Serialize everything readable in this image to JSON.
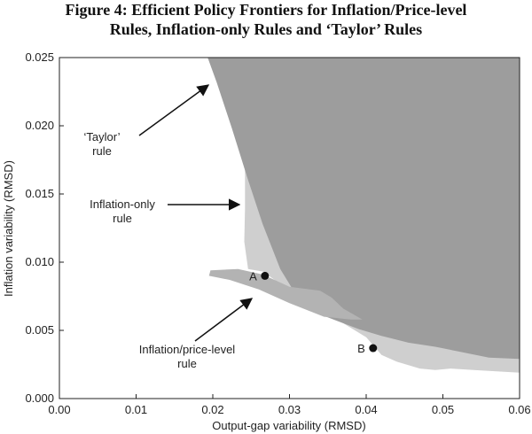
{
  "chart_data": {
    "type": "area",
    "title_line1": "Figure 4: Efficient Policy Frontiers for Inflation/Price-level",
    "title_line2": "Rules, Inflation-only Rules and ‘Taylor’ Rules",
    "xlabel": "Output-gap variability (RMSD)",
    "ylabel": "Inflation variability (RMSD)",
    "xlim": [
      0,
      0.06
    ],
    "ylim": [
      0,
      0.025
    ],
    "x_ticks": [
      "0.00",
      "0.01",
      "0.02",
      "0.03",
      "0.04",
      "0.05",
      "0.06"
    ],
    "y_ticks": [
      "0.000",
      "0.005",
      "0.010",
      "0.015",
      "0.020",
      "0.025"
    ],
    "grid": false,
    "series": [
      {
        "name": "Inflation-only rule",
        "color": "#cfcfcf",
        "points": [
          [
            0.0242,
            0.0252
          ],
          [
            0.0242,
            0.0139
          ],
          [
            0.0241,
            0.0115
          ],
          [
            0.0246,
            0.0095
          ],
          [
            0.0266,
            0.0093
          ],
          [
            0.0283,
            0.0086
          ],
          [
            0.0333,
            0.0064
          ],
          [
            0.0365,
            0.0057
          ],
          [
            0.04,
            0.0045
          ],
          [
            0.042,
            0.0032
          ],
          [
            0.044,
            0.0027
          ],
          [
            0.047,
            0.0022
          ],
          [
            0.049,
            0.0021
          ],
          [
            0.051,
            0.0022
          ],
          [
            0.054,
            0.0021
          ],
          [
            0.057,
            0.002
          ],
          [
            0.06,
            0.0019
          ],
          [
            0.06,
            0.0252
          ]
        ]
      },
      {
        "name": "Taylor rule",
        "color": "#9d9d9d",
        "points": [
          [
            0.0192,
            0.0252
          ],
          [
            0.0205,
            0.0232
          ],
          [
            0.0225,
            0.0198
          ],
          [
            0.0245,
            0.0162
          ],
          [
            0.0265,
            0.0128
          ],
          [
            0.0288,
            0.0095
          ],
          [
            0.0313,
            0.0072
          ],
          [
            0.0348,
            0.006
          ],
          [
            0.039,
            0.0051
          ],
          [
            0.042,
            0.0046
          ],
          [
            0.0455,
            0.0041
          ],
          [
            0.049,
            0.0038
          ],
          [
            0.0525,
            0.0034
          ],
          [
            0.056,
            0.003
          ],
          [
            0.06,
            0.0029
          ],
          [
            0.06,
            0.0252
          ]
        ]
      },
      {
        "name": "Inflation/price-level rule",
        "color": "#b3b3b3",
        "points": [
          [
            0.0197,
            0.0094
          ],
          [
            0.0233,
            0.0095
          ],
          [
            0.0265,
            0.0091
          ],
          [
            0.03,
            0.0082
          ],
          [
            0.034,
            0.0079
          ],
          [
            0.0355,
            0.0074
          ],
          [
            0.037,
            0.0066
          ],
          [
            0.0395,
            0.0058
          ],
          [
            0.038,
            0.0058
          ],
          [
            0.0345,
            0.006
          ],
          [
            0.03,
            0.007
          ],
          [
            0.026,
            0.008
          ],
          [
            0.0222,
            0.0087
          ],
          [
            0.0195,
            0.009
          ]
        ]
      }
    ],
    "points_labeled": [
      {
        "label": "A",
        "x": 0.0268,
        "y": 0.009
      },
      {
        "label": "B",
        "x": 0.0409,
        "y": 0.0037
      }
    ],
    "annotations": [
      {
        "label_lines": [
          "‘Taylor’",
          "rule"
        ],
        "target": "Taylor rule region"
      },
      {
        "label_lines": [
          "Inflation-only",
          "rule"
        ],
        "target": "Inflation-only rule region"
      },
      {
        "label_lines": [
          "Inflation/price-level",
          "rule"
        ],
        "target": "Inflation/price-level rule region"
      }
    ]
  }
}
